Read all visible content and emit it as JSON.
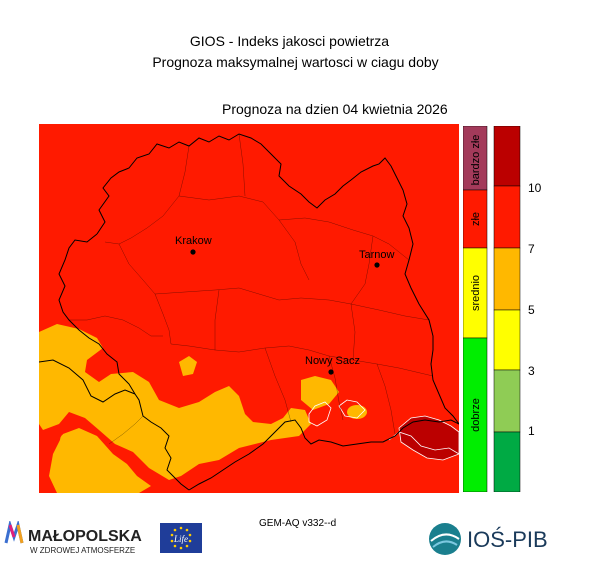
{
  "header": {
    "title": "GIOS - Indeks jakosci powietrza",
    "subtitle": "Prognoza maksymalnej wartosci w ciagu doby",
    "forecast_date": "Prognoza na dzien  04 kwietnia 2026"
  },
  "cities": [
    {
      "name": "Krakow"
    },
    {
      "name": "Tarnow"
    },
    {
      "name": "Nowy Sacz"
    }
  ],
  "legend": {
    "categories": [
      {
        "label": "bardzo złe",
        "color": "#a33a5a"
      },
      {
        "label": "złe",
        "color": "#ff1a00"
      },
      {
        "label": "srednio",
        "color": "#ffff00"
      },
      {
        "label": "dobrze",
        "color": "#00ee00"
      }
    ],
    "scale_colors": [
      "#00aa44",
      "#8fcc55",
      "#ffff00",
      "#ffb800",
      "#ff1a00",
      "#bb0000"
    ],
    "ticks": [
      "1",
      "3",
      "5",
      "7",
      "10"
    ]
  },
  "map_colors": {
    "red": "#ff1a00",
    "orange": "#ffb800",
    "darkred": "#bb0000",
    "border": "#000000"
  },
  "footer": {
    "model": "GEM-AQ v332--d",
    "malopolska_name": "MAŁOPOLSKA",
    "malopolska_tagline": "W ZDROWEJ ATMOSFERZE",
    "eu_life": "Life",
    "ios_name": "IOŚ-PIB"
  }
}
